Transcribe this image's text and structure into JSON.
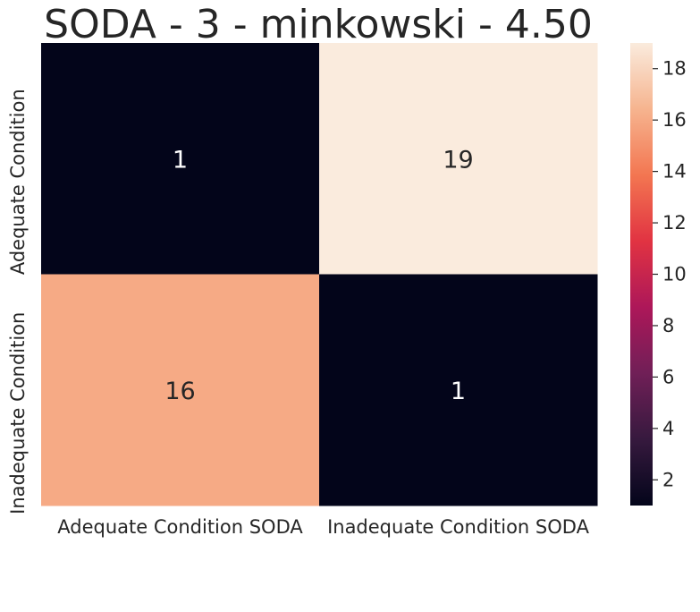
{
  "chart_data": {
    "type": "heatmap",
    "title": "SODA - 3 - minkowski - 4.50",
    "x_categories": [
      "Adequate Condition SODA",
      "Inadequate Condition SODA"
    ],
    "y_categories": [
      "Adequate Condition",
      "Inadequate Condition"
    ],
    "values": [
      [
        1,
        19
      ],
      [
        16,
        1
      ]
    ],
    "colorbar": {
      "range": [
        1,
        19
      ],
      "ticks": [
        2,
        4,
        6,
        8,
        10,
        12,
        14,
        16,
        18
      ],
      "colormap_stops": [
        "#03051a",
        "#36193e",
        "#701f57",
        "#ad1759",
        "#e13342",
        "#f37651",
        "#f6b48f",
        "#faebdd"
      ]
    },
    "cell_label_colors": {
      "light": "#ffffff",
      "dark": "#262626"
    }
  }
}
